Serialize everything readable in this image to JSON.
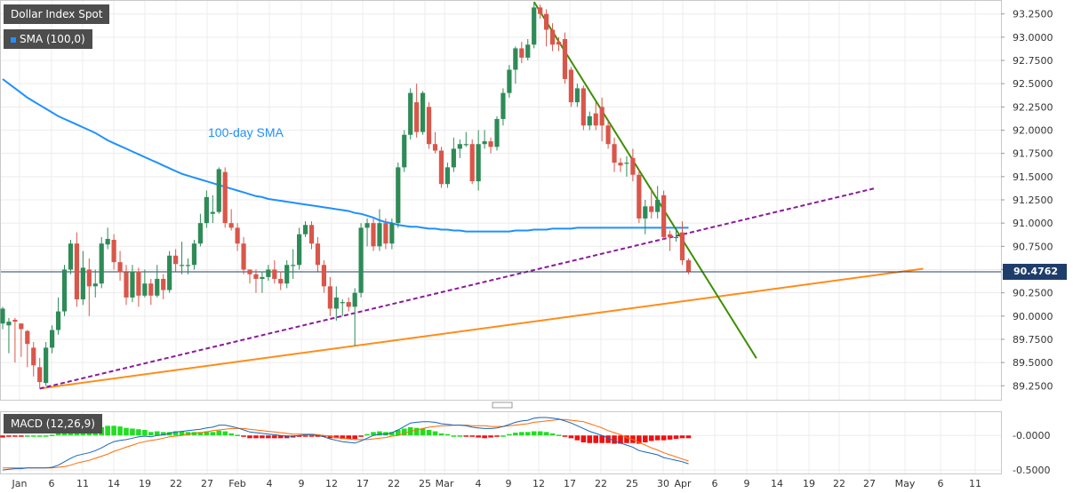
{
  "colors": {
    "up": "#2e8b57",
    "down": "#d9564a",
    "sma": "#1e90ff",
    "trend_green": "#3d8f00",
    "trend_orange": "#ff8c1a",
    "trend_purple": "#8b1a9b",
    "macd_line": "#1565c0",
    "signal_line": "#ff6a00",
    "hist_pos": "#22dd22",
    "hist_neg": "#ee1111",
    "price_tag": "#1f3d6b"
  },
  "chart_data": [
    {
      "type": "candlestick",
      "title": "Dollar Index Spot",
      "indicator_label": "SMA (100,0)",
      "annotation": "100-day SMA",
      "last_price": "90.4762",
      "ylim": [
        89.1,
        93.4
      ],
      "y_ticks": [
        "93.2500",
        "93.0000",
        "92.7500",
        "92.5000",
        "92.2500",
        "92.0000",
        "91.7500",
        "91.5000",
        "91.2500",
        "91.0000",
        "90.7500",
        "90.5000",
        "90.2500",
        "90.0000",
        "89.7500",
        "89.5000",
        "89.2500"
      ],
      "x_ticks": [
        "Jan",
        "6",
        "11",
        "14",
        "19",
        "22",
        "27",
        "Feb",
        "4",
        "9",
        "12",
        "17",
        "22",
        "25",
        "Mar",
        "4",
        "9",
        "12",
        "17",
        "22",
        "25",
        "30",
        "Apr",
        "6",
        "9",
        "14",
        "19",
        "22",
        "27",
        "May",
        "6",
        "11"
      ],
      "candles": [
        [
          89.92,
          90.08,
          89.86,
          90.1
        ],
        [
          89.9,
          89.94,
          89.6,
          89.98
        ],
        [
          89.96,
          89.94,
          89.5,
          89.98
        ],
        [
          89.92,
          89.86,
          89.56,
          89.92
        ],
        [
          89.84,
          89.7,
          89.45,
          89.85
        ],
        [
          89.66,
          89.47,
          89.35,
          89.72
        ],
        [
          89.45,
          89.29,
          89.22,
          89.55
        ],
        [
          89.28,
          89.66,
          89.25,
          89.72
        ],
        [
          89.66,
          89.85,
          89.6,
          89.9
        ],
        [
          89.85,
          90.05,
          89.8,
          90.2
        ],
        [
          90.05,
          90.5,
          90.0,
          90.55
        ],
        [
          90.5,
          90.78,
          90.45,
          90.82
        ],
        [
          90.78,
          90.18,
          90.1,
          90.9
        ],
        [
          90.18,
          90.52,
          90.12,
          90.7
        ],
        [
          90.5,
          90.32,
          90.0,
          90.62
        ],
        [
          90.32,
          90.35,
          90.2,
          90.5
        ],
        [
          90.35,
          90.78,
          90.3,
          90.85
        ],
        [
          90.77,
          90.83,
          90.72,
          90.95
        ],
        [
          90.82,
          90.58,
          90.5,
          90.88
        ],
        [
          90.58,
          90.47,
          90.38,
          90.7
        ],
        [
          90.47,
          90.2,
          90.12,
          90.55
        ],
        [
          90.2,
          90.48,
          90.15,
          90.55
        ],
        [
          90.48,
          90.22,
          90.1,
          90.52
        ],
        [
          90.22,
          90.35,
          90.2,
          90.5
        ],
        [
          90.35,
          90.22,
          90.12,
          90.4
        ],
        [
          90.22,
          90.4,
          90.2,
          90.55
        ],
        [
          90.4,
          90.28,
          90.18,
          90.45
        ],
        [
          90.28,
          90.65,
          90.25,
          90.7
        ],
        [
          90.65,
          90.56,
          90.48,
          90.72
        ],
        [
          90.55,
          90.55,
          90.45,
          90.8
        ],
        [
          90.55,
          90.55,
          90.45,
          90.62
        ],
        [
          90.55,
          90.78,
          90.5,
          90.82
        ],
        [
          90.78,
          91.0,
          90.75,
          91.1
        ],
        [
          91.0,
          91.28,
          90.95,
          91.35
        ],
        [
          91.1,
          91.12,
          91.0,
          91.3
        ],
        [
          91.12,
          91.58,
          91.1,
          91.6
        ],
        [
          91.55,
          91.0,
          90.95,
          91.6
        ],
        [
          91.0,
          90.95,
          90.92,
          91.15
        ],
        [
          90.95,
          90.78,
          90.7,
          91.0
        ],
        [
          90.78,
          90.5,
          90.45,
          90.85
        ],
        [
          90.5,
          90.45,
          90.35,
          90.5
        ],
        [
          90.45,
          90.4,
          90.25,
          90.5
        ],
        [
          90.4,
          90.42,
          90.25,
          90.48
        ],
        [
          90.42,
          90.5,
          90.38,
          90.55
        ],
        [
          90.5,
          90.4,
          90.35,
          90.6
        ],
        [
          90.4,
          90.35,
          90.28,
          90.48
        ],
        [
          90.35,
          90.55,
          90.3,
          90.6
        ],
        [
          90.55,
          90.55,
          90.4,
          90.72
        ],
        [
          90.55,
          90.88,
          90.5,
          90.95
        ],
        [
          90.88,
          90.98,
          90.85,
          91.02
        ],
        [
          90.98,
          90.78,
          90.72,
          91.02
        ],
        [
          90.78,
          90.55,
          90.48,
          90.85
        ],
        [
          90.55,
          90.32,
          90.25,
          90.6
        ],
        [
          90.32,
          90.08,
          90.0,
          90.42
        ],
        [
          90.08,
          90.2,
          89.95,
          90.32
        ],
        [
          90.15,
          90.15,
          90.0,
          90.18
        ],
        [
          90.15,
          90.1,
          90.05,
          90.2
        ],
        [
          90.1,
          90.25,
          89.68,
          90.3
        ],
        [
          90.25,
          90.95,
          90.2,
          91.0
        ],
        [
          90.95,
          91.0,
          90.75,
          91.05
        ],
        [
          91.0,
          90.75,
          90.7,
          91.05
        ],
        [
          90.75,
          91.0,
          90.7,
          91.15
        ],
        [
          91.0,
          90.78,
          90.72,
          91.05
        ],
        [
          90.78,
          91.0,
          90.72,
          91.05
        ],
        [
          91.0,
          91.6,
          90.95,
          91.65
        ],
        [
          91.6,
          91.95,
          91.55,
          92.0
        ],
        [
          91.95,
          92.4,
          91.9,
          92.45
        ],
        [
          92.3,
          91.98,
          91.92,
          92.5
        ],
        [
          91.98,
          92.4,
          91.95,
          92.42
        ],
        [
          92.25,
          91.85,
          91.8,
          92.3
        ],
        [
          91.85,
          91.78,
          91.75,
          91.98
        ],
        [
          91.78,
          91.42,
          91.38,
          91.82
        ],
        [
          91.42,
          91.6,
          91.38,
          91.65
        ],
        [
          91.6,
          91.8,
          91.55,
          91.92
        ],
        [
          91.8,
          91.85,
          91.7,
          91.9
        ],
        [
          91.85,
          91.85,
          91.82,
          91.98
        ],
        [
          91.85,
          91.45,
          91.42,
          91.9
        ],
        [
          91.45,
          91.85,
          91.35,
          92.0
        ],
        [
          91.85,
          91.88,
          91.8,
          92.0
        ],
        [
          91.88,
          91.82,
          91.75,
          91.92
        ],
        [
          91.82,
          92.12,
          91.78,
          92.15
        ],
        [
          92.12,
          92.4,
          92.05,
          92.45
        ],
        [
          92.4,
          92.65,
          92.35,
          92.7
        ],
        [
          92.65,
          92.88,
          92.5,
          92.9
        ],
        [
          92.88,
          92.78,
          92.72,
          92.95
        ],
        [
          92.78,
          92.92,
          92.75,
          92.98
        ],
        [
          92.92,
          93.32,
          92.88,
          93.38
        ],
        [
          93.32,
          93.25,
          93.2,
          93.35
        ],
        [
          93.25,
          93.08,
          92.9,
          93.3
        ],
        [
          93.08,
          92.92,
          92.85,
          93.15
        ],
        [
          92.95,
          92.92,
          92.85,
          93.0
        ],
        [
          92.98,
          92.55,
          92.5,
          93.05
        ],
        [
          92.65,
          92.3,
          92.25,
          92.68
        ],
        [
          92.3,
          92.45,
          92.25,
          92.5
        ],
        [
          92.45,
          92.05,
          92.0,
          92.48
        ],
        [
          92.05,
          92.15,
          92.0,
          92.2
        ],
        [
          92.18,
          92.05,
          92.0,
          92.3
        ],
        [
          92.25,
          92.05,
          91.88,
          92.35
        ],
        [
          92.05,
          91.85,
          91.8,
          92.1
        ],
        [
          91.85,
          91.65,
          91.55,
          91.92
        ],
        [
          91.65,
          91.62,
          91.55,
          91.7
        ],
        [
          91.65,
          91.65,
          91.5,
          91.72
        ],
        [
          91.7,
          91.52,
          91.45,
          91.8
        ],
        [
          91.52,
          91.05,
          91.0,
          91.58
        ],
        [
          91.05,
          91.18,
          90.88,
          91.25
        ],
        [
          91.18,
          91.12,
          91.05,
          91.38
        ],
        [
          91.12,
          91.25,
          91.05,
          91.4
        ],
        [
          91.3,
          90.85,
          90.82,
          91.35
        ],
        [
          90.88,
          90.85,
          90.7,
          90.92
        ],
        [
          90.85,
          90.85,
          90.8,
          90.95
        ],
        [
          90.9,
          90.6,
          90.55,
          91.02
        ],
        [
          90.6,
          90.48,
          90.45,
          90.62
        ]
      ],
      "sma": [
        92.55,
        92.5,
        92.45,
        92.4,
        92.35,
        92.31,
        92.27,
        92.23,
        92.19,
        92.15,
        92.12,
        92.09,
        92.06,
        92.03,
        92.0,
        91.97,
        91.93,
        91.89,
        91.86,
        91.83,
        91.8,
        91.77,
        91.74,
        91.71,
        91.68,
        91.65,
        91.62,
        91.59,
        91.56,
        91.53,
        91.51,
        91.49,
        91.47,
        91.45,
        91.43,
        91.41,
        91.39,
        91.37,
        91.35,
        91.33,
        91.31,
        91.29,
        91.28,
        91.26,
        91.25,
        91.24,
        91.23,
        91.22,
        91.21,
        91.2,
        91.19,
        91.18,
        91.17,
        91.16,
        91.15,
        91.14,
        91.13,
        91.11,
        91.1,
        91.08,
        91.06,
        91.03,
        91.01,
        91.0,
        90.98,
        90.97,
        90.96,
        90.96,
        90.95,
        90.94,
        90.94,
        90.93,
        90.93,
        90.92,
        90.92,
        90.91,
        90.91,
        90.91,
        90.91,
        90.91,
        90.91,
        90.91,
        90.91,
        90.92,
        90.92,
        90.92,
        90.93,
        90.93,
        90.93,
        90.94,
        90.94,
        90.94,
        90.94,
        90.95,
        90.95,
        90.95,
        90.95,
        90.95,
        90.95,
        90.95,
        90.95,
        90.95,
        90.95,
        90.95,
        90.95,
        90.95,
        90.95,
        90.95,
        90.95,
        90.95,
        90.95,
        90.95
      ]
    },
    {
      "type": "macd",
      "title": "MACD (12,26,9)",
      "ylim": [
        -0.55,
        0.35
      ],
      "y_ticks": [
        "-0.0000",
        "-0.5000"
      ],
      "macd": [
        -0.5,
        -0.49,
        -0.48,
        -0.48,
        -0.47,
        -0.47,
        -0.47,
        -0.47,
        -0.46,
        -0.43,
        -0.38,
        -0.33,
        -0.29,
        -0.27,
        -0.25,
        -0.22,
        -0.18,
        -0.13,
        -0.09,
        -0.07,
        -0.06,
        -0.04,
        -0.02,
        -0.01,
        -0.02,
        0.0,
        0.01,
        0.03,
        0.05,
        0.06,
        0.07,
        0.08,
        0.09,
        0.11,
        0.12,
        0.15,
        0.15,
        0.13,
        0.11,
        0.08,
        0.05,
        0.04,
        0.03,
        0.02,
        0.01,
        0.0,
        -0.01,
        -0.01,
        0.0,
        0.01,
        0.01,
        0.0,
        -0.02,
        -0.05,
        -0.07,
        -0.09,
        -0.1,
        -0.11,
        -0.08,
        -0.04,
        0.0,
        0.02,
        0.02,
        0.04,
        0.08,
        0.13,
        0.18,
        0.19,
        0.2,
        0.2,
        0.19,
        0.17,
        0.16,
        0.15,
        0.15,
        0.14,
        0.12,
        0.11,
        0.1,
        0.1,
        0.11,
        0.13,
        0.16,
        0.19,
        0.21,
        0.22,
        0.25,
        0.26,
        0.26,
        0.25,
        0.24,
        0.21,
        0.18,
        0.14,
        0.1,
        0.06,
        0.03,
        0.0,
        -0.04,
        -0.08,
        -0.11,
        -0.14,
        -0.17,
        -0.22,
        -0.24,
        -0.26,
        -0.28,
        -0.32,
        -0.34,
        -0.36,
        -0.38,
        -0.41
      ],
      "signal": [
        -0.47,
        -0.47,
        -0.47,
        -0.47,
        -0.47,
        -0.47,
        -0.47,
        -0.47,
        -0.47,
        -0.46,
        -0.45,
        -0.43,
        -0.4,
        -0.38,
        -0.36,
        -0.33,
        -0.3,
        -0.27,
        -0.23,
        -0.2,
        -0.17,
        -0.14,
        -0.11,
        -0.09,
        -0.07,
        -0.06,
        -0.04,
        -0.02,
        -0.01,
        0.0,
        0.02,
        0.03,
        0.04,
        0.05,
        0.07,
        0.08,
        0.09,
        0.1,
        0.1,
        0.1,
        0.09,
        0.08,
        0.07,
        0.06,
        0.05,
        0.04,
        0.03,
        0.02,
        0.02,
        0.02,
        0.02,
        0.01,
        0.0,
        -0.01,
        -0.03,
        -0.04,
        -0.05,
        -0.06,
        -0.06,
        -0.06,
        -0.05,
        -0.04,
        -0.03,
        -0.01,
        0.0,
        0.03,
        0.06,
        0.08,
        0.1,
        0.12,
        0.13,
        0.14,
        0.14,
        0.15,
        0.15,
        0.15,
        0.14,
        0.14,
        0.14,
        0.13,
        0.13,
        0.13,
        0.14,
        0.15,
        0.16,
        0.17,
        0.19,
        0.2,
        0.21,
        0.22,
        0.23,
        0.23,
        0.22,
        0.21,
        0.2,
        0.17,
        0.14,
        0.11,
        0.07,
        0.04,
        0.01,
        -0.03,
        -0.06,
        -0.1,
        -0.14,
        -0.18,
        -0.21,
        -0.25,
        -0.28,
        -0.31,
        -0.34,
        -0.37
      ]
    }
  ]
}
